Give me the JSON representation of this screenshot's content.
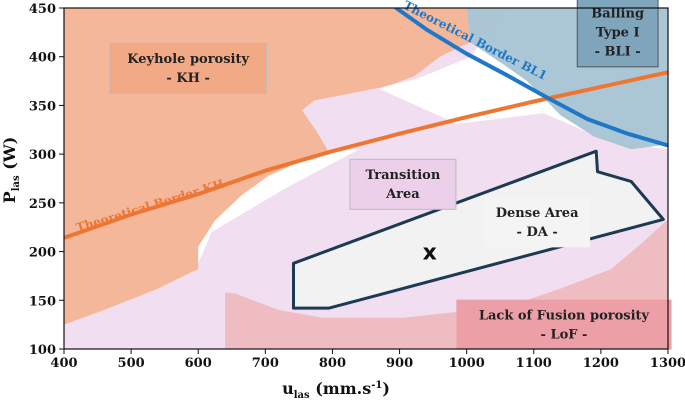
{
  "chart_data": {
    "type": "area",
    "xlabel": "u",
    "xlabel_sub": "las",
    "xlabel_unit": " (mm.s",
    "xlabel_unit_sup": "-1",
    "xlabel_unit_end": ")",
    "ylabel": "P",
    "ylabel_sub": "las",
    "ylabel_unit": " (W)",
    "xlim": [
      400,
      1300
    ],
    "ylim": [
      100,
      450
    ],
    "xticks": [
      "400",
      "500",
      "600",
      "700",
      "800",
      "900",
      "1000",
      "1100",
      "1200",
      "1300"
    ],
    "yticks": [
      "100",
      "150",
      "200",
      "250",
      "300",
      "350",
      "400",
      "450"
    ],
    "grid": false,
    "colors": {
      "kh": "#f4b79a",
      "transition": "#f1def0",
      "lof": "#eeb9bf",
      "bli": "#a6c3d2",
      "kh_line": "#ee7633",
      "bli_line": "#1f77c8",
      "dense_fill": "#f2f2f2",
      "dense_stroke": "#1c3a52"
    },
    "regions": [
      {
        "name": "transition",
        "label_lines": [
          "Transition",
          "Area"
        ],
        "label_at": [
          905,
          269
        ],
        "polygon": [
          [
            400,
            100
          ],
          [
            400,
            125
          ],
          [
            460,
            140
          ],
          [
            540,
            162
          ],
          [
            595,
            180
          ],
          [
            620,
            220
          ],
          [
            730,
            265
          ],
          [
            840,
            305
          ],
          [
            975,
            330
          ],
          [
            1115,
            342
          ],
          [
            1215,
            312
          ],
          [
            1300,
            305
          ],
          [
            1300,
            100
          ]
        ]
      },
      {
        "name": "kh",
        "label_lines": [
          "Keyhole porosity",
          "- KH -"
        ],
        "label_at": [
          585,
          388
        ],
        "polygon": [
          [
            400,
            450
          ],
          [
            400,
            125
          ],
          [
            460,
            140
          ],
          [
            540,
            162
          ],
          [
            600,
            182
          ],
          [
            600,
            205
          ],
          [
            625,
            232
          ],
          [
            665,
            258
          ],
          [
            705,
            278
          ],
          [
            760,
            295
          ],
          [
            795,
            302
          ],
          [
            775,
            325
          ],
          [
            755,
            345
          ],
          [
            773,
            355
          ],
          [
            870,
            368
          ],
          [
            928,
            378
          ],
          [
            1005,
            400
          ],
          [
            1050,
            440
          ],
          [
            1065,
            450
          ]
        ]
      },
      {
        "name": "transition-upper",
        "label_lines": [],
        "label_at": [
          0,
          0
        ],
        "polygon": [
          [
            795,
            302
          ],
          [
            775,
            325
          ],
          [
            755,
            345
          ],
          [
            773,
            355
          ],
          [
            870,
            368
          ],
          [
            928,
            378
          ],
          [
            1005,
            400
          ],
          [
            1050,
            440
          ],
          [
            1065,
            450
          ],
          [
            1000,
            450
          ],
          [
            1005,
            415
          ],
          [
            960,
            400
          ],
          [
            922,
            380
          ],
          [
            870,
            367
          ],
          [
            1005,
            325
          ],
          [
            1060,
            318
          ],
          [
            1120,
            322
          ],
          [
            1115,
            342
          ],
          [
            975,
            330
          ],
          [
            840,
            305
          ]
        ]
      },
      {
        "name": "bli",
        "label_lines": [
          "Balling",
          "Type I",
          "- BLI -"
        ],
        "label_at": [
          1225,
          425
        ],
        "polygon": [
          [
            1000,
            450
          ],
          [
            1005,
            415
          ],
          [
            1055,
            392
          ],
          [
            1090,
            375
          ],
          [
            1140,
            340
          ],
          [
            1190,
            318
          ],
          [
            1245,
            305
          ],
          [
            1300,
            310
          ],
          [
            1300,
            450
          ]
        ]
      },
      {
        "name": "lof",
        "label_lines": [
          "Lack of Fusion porosity",
          "- LoF -"
        ],
        "label_at": [
          1145,
          125
        ],
        "polygon": [
          [
            640,
            100
          ],
          [
            640,
            158
          ],
          [
            655,
            157
          ],
          [
            720,
            140
          ],
          [
            785,
            132
          ],
          [
            905,
            132
          ],
          [
            985,
            138
          ],
          [
            1080,
            148
          ],
          [
            1140,
            162
          ],
          [
            1215,
            182
          ],
          [
            1260,
            208
          ],
          [
            1300,
            233
          ],
          [
            1300,
            100
          ]
        ]
      },
      {
        "name": "dense",
        "label_lines": [
          "Dense Area",
          "- DA -"
        ],
        "label_at": [
          1105,
          230
        ],
        "polygon": [
          [
            742,
            188
          ],
          [
            742,
            142
          ],
          [
            795,
            142
          ],
          [
            1293,
            233
          ],
          [
            1245,
            272
          ],
          [
            1195,
            282
          ],
          [
            1193,
            303
          ],
          [
            742,
            188
          ]
        ]
      }
    ],
    "series": [
      {
        "name": "Theoretical Border KH",
        "x": [
          400,
          500,
          600,
          700,
          800,
          900,
          1000,
          1100,
          1200,
          1300
        ],
        "y": [
          214,
          238,
          259,
          283,
          303,
          321,
          338,
          354,
          369,
          384
        ],
        "label_at": [
          530,
          243
        ],
        "label_angle": -17
      },
      {
        "name": "Theoretical Border BL1",
        "x": [
          895,
          940,
          1000,
          1060,
          1120,
          1180,
          1240,
          1300
        ],
        "y": [
          450,
          428,
          403,
          381,
          358,
          336,
          321,
          309
        ],
        "label_at": [
          1010,
          413
        ],
        "label_angle": 27
      }
    ],
    "annotations": [
      {
        "text": "x",
        "at": [
          945,
          199
        ]
      }
    ]
  }
}
